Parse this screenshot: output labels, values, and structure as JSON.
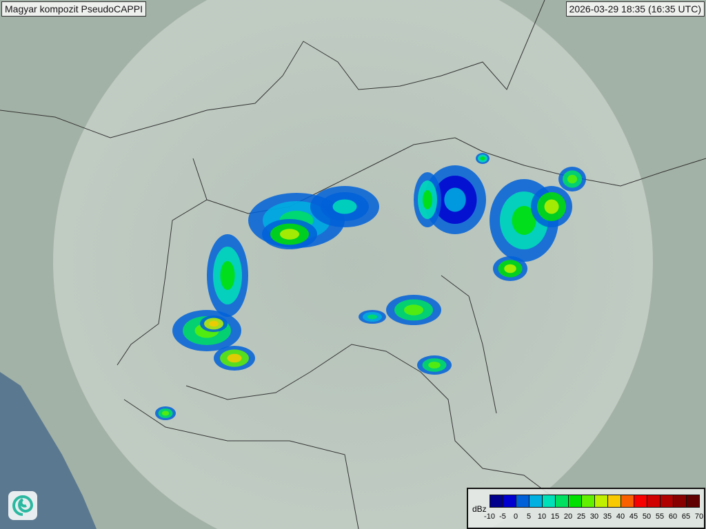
{
  "header": {
    "title": "Magyar kompozit  PseudoCAPPI",
    "timestamp": "2026-03-29 18:35 (16:35 UTC)"
  },
  "legend": {
    "unit": "dBz",
    "ticks": [
      "-10",
      "-5",
      "0",
      "5",
      "10",
      "15",
      "20",
      "25",
      "30",
      "35",
      "40",
      "45",
      "50",
      "55",
      "60",
      "65",
      "70"
    ],
    "colors": [
      "#00008c",
      "#0000d0",
      "#0060d8",
      "#00b0e0",
      "#00e0b8",
      "#00e060",
      "#00e000",
      "#60f000",
      "#c0f000",
      "#f8c800",
      "#f86000",
      "#f80000",
      "#d00000",
      "#b00000",
      "#880000",
      "#600000"
    ]
  },
  "map": {
    "land_color": "#a6b4a8",
    "sea_color": "#5a7890",
    "radar_coverage_color": "#c8d4cc",
    "border_color": "#333333"
  },
  "logo": {
    "icon": "swirl-logo-icon"
  }
}
